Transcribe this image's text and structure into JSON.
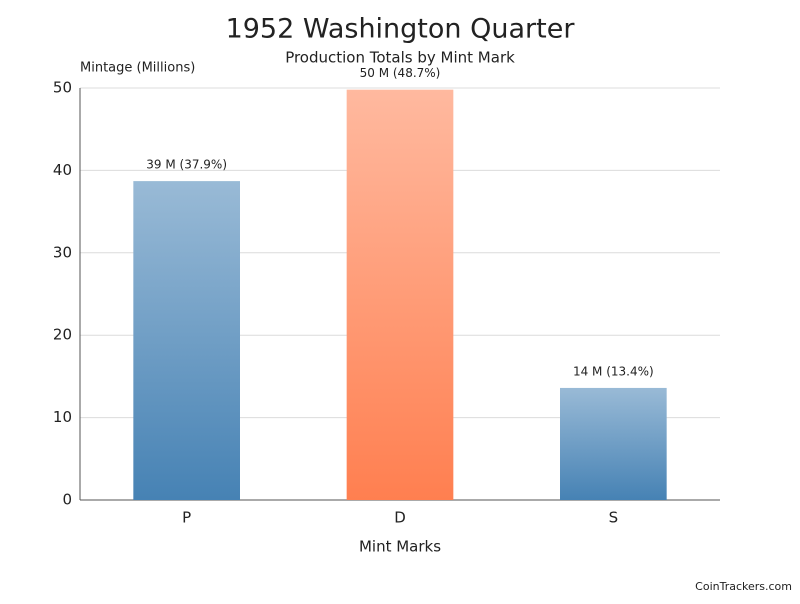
{
  "chart_data": {
    "type": "bar",
    "title": "1952 Washington Quarter",
    "subtitle": "Production Totals by Mint Mark",
    "y_label": "Mintage (Millions)",
    "x_label": "Mint Marks",
    "source": "CoinTrackers.com",
    "categories": [
      "P",
      "D",
      "S"
    ],
    "values": [
      38.7,
      49.8,
      13.6
    ],
    "value_labels": [
      "39 M (37.9%)",
      "50 M (48.7%)",
      "14 M (13.4%)"
    ],
    "colors": [
      "#4682b4",
      "#ff7f50",
      "#4682b4"
    ],
    "ylim": [
      0,
      50
    ],
    "yticks": [
      0,
      10,
      20,
      30,
      40,
      50
    ],
    "grid": true
  }
}
